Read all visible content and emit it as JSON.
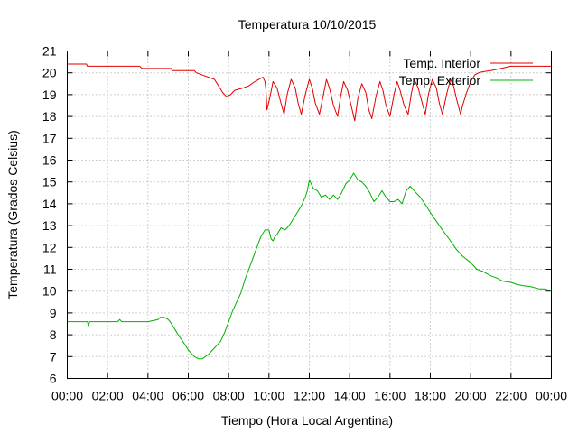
{
  "chart_data": {
    "type": "line",
    "title": "Temperatura 10/10/2015",
    "xlabel": "Tiempo (Hora Local Argentina)",
    "ylabel": "Temperatura (Grados Celsius)",
    "xlim": [
      0,
      24
    ],
    "ylim": [
      6,
      21
    ],
    "x_ticks": [
      "00:00",
      "02:00",
      "04:00",
      "06:00",
      "08:00",
      "10:00",
      "12:00",
      "14:00",
      "16:00",
      "18:00",
      "20:00",
      "22:00",
      "00:00"
    ],
    "y_ticks": [
      "6",
      "7",
      "8",
      "9",
      "10",
      "11",
      "12",
      "13",
      "14",
      "15",
      "16",
      "17",
      "18",
      "19",
      "20",
      "21"
    ],
    "grid": true,
    "legend_position": "top-right",
    "series": [
      {
        "name": "Temp. Interior",
        "color": "#e00000",
        "x": [
          0,
          0.95,
          1.0,
          3.6,
          3.7,
          5.15,
          5.2,
          6.3,
          6.4,
          7.3,
          7.5,
          7.7,
          7.9,
          8.1,
          8.3,
          8.7,
          9.0,
          9.3,
          9.5,
          9.7,
          9.8,
          9.85,
          9.9,
          10.05,
          10.2,
          10.4,
          10.6,
          10.75,
          10.9,
          11.1,
          11.3,
          11.45,
          11.6,
          11.8,
          12.0,
          12.15,
          12.3,
          12.5,
          12.7,
          12.85,
          13.0,
          13.2,
          13.4,
          13.55,
          13.7,
          13.9,
          14.1,
          14.25,
          14.4,
          14.6,
          14.8,
          14.95,
          15.1,
          15.3,
          15.5,
          15.65,
          15.8,
          16.0,
          16.2,
          16.35,
          16.5,
          16.7,
          16.9,
          17.05,
          17.2,
          17.4,
          17.6,
          17.75,
          17.9,
          18.1,
          18.3,
          18.45,
          18.6,
          18.8,
          19.0,
          19.15,
          19.3,
          19.5,
          19.6,
          19.8,
          20.0,
          20.2,
          20.4,
          20.6,
          21.0,
          21.5,
          22.0,
          22.5,
          23.0,
          24.0
        ],
        "values": [
          20.4,
          20.4,
          20.3,
          20.3,
          20.2,
          20.2,
          20.1,
          20.1,
          20.0,
          19.7,
          19.4,
          19.1,
          18.9,
          19.0,
          19.2,
          19.3,
          19.4,
          19.6,
          19.7,
          19.8,
          19.6,
          19.2,
          18.3,
          18.9,
          19.6,
          19.3,
          18.6,
          18.1,
          19.0,
          19.7,
          19.3,
          18.6,
          18.1,
          19.0,
          19.7,
          19.3,
          18.6,
          18.1,
          19.0,
          19.7,
          19.3,
          18.5,
          18.0,
          18.9,
          19.6,
          19.2,
          18.4,
          17.8,
          18.8,
          19.5,
          19.1,
          18.3,
          17.9,
          18.9,
          19.6,
          19.2,
          18.5,
          18.0,
          19.0,
          19.6,
          19.2,
          18.5,
          18.1,
          19.0,
          19.7,
          19.3,
          18.6,
          18.1,
          19.0,
          19.7,
          19.3,
          18.6,
          18.1,
          19.0,
          19.7,
          19.4,
          18.8,
          18.1,
          18.5,
          19.1,
          19.6,
          19.9,
          20.0,
          20.05,
          20.1,
          20.2,
          20.3,
          20.3,
          20.3,
          20.3
        ]
      },
      {
        "name": "Temp. Exterior",
        "color": "#00b000",
        "x": [
          0,
          1.0,
          1.05,
          1.1,
          1.15,
          2.5,
          2.6,
          2.7,
          3.0,
          4.0,
          4.5,
          4.6,
          4.8,
          5.0,
          5.1,
          5.3,
          5.5,
          5.8,
          6.0,
          6.3,
          6.5,
          6.7,
          7.0,
          7.2,
          7.4,
          7.6,
          7.8,
          8.0,
          8.2,
          8.4,
          8.6,
          8.8,
          9.0,
          9.2,
          9.4,
          9.6,
          9.8,
          10.0,
          10.1,
          10.2,
          10.3,
          10.4,
          10.6,
          10.8,
          11.0,
          11.2,
          11.4,
          11.6,
          11.8,
          11.9,
          12.0,
          12.2,
          12.4,
          12.6,
          12.8,
          13.0,
          13.2,
          13.4,
          13.6,
          13.8,
          14.0,
          14.2,
          14.4,
          14.6,
          14.8,
          15.0,
          15.2,
          15.4,
          15.6,
          15.8,
          16.0,
          16.2,
          16.4,
          16.6,
          16.8,
          17.0,
          17.2,
          17.5,
          17.8,
          18.0,
          18.3,
          18.6,
          19.0,
          19.3,
          19.6,
          20.0,
          20.3,
          20.6,
          21.0,
          21.3,
          21.6,
          22.0,
          22.3,
          22.6,
          23.0,
          23.4,
          23.7,
          24.0
        ],
        "values": [
          8.6,
          8.6,
          8.4,
          8.6,
          8.6,
          8.6,
          8.7,
          8.6,
          8.6,
          8.6,
          8.7,
          8.8,
          8.8,
          8.7,
          8.6,
          8.3,
          8.0,
          7.6,
          7.3,
          7.0,
          6.9,
          6.9,
          7.1,
          7.3,
          7.5,
          7.7,
          8.1,
          8.6,
          9.1,
          9.5,
          9.9,
          10.5,
          11.0,
          11.5,
          12.0,
          12.5,
          12.8,
          12.8,
          12.4,
          12.3,
          12.5,
          12.6,
          12.9,
          12.8,
          13.0,
          13.3,
          13.6,
          13.9,
          14.3,
          14.6,
          15.1,
          14.7,
          14.6,
          14.3,
          14.4,
          14.2,
          14.4,
          14.2,
          14.5,
          14.9,
          15.1,
          15.4,
          15.1,
          15.0,
          14.8,
          14.5,
          14.1,
          14.3,
          14.6,
          14.3,
          14.1,
          14.1,
          14.2,
          14.0,
          14.6,
          14.8,
          14.6,
          14.3,
          13.9,
          13.6,
          13.2,
          12.8,
          12.3,
          11.9,
          11.6,
          11.3,
          11.0,
          10.9,
          10.7,
          10.6,
          10.45,
          10.4,
          10.3,
          10.25,
          10.2,
          10.1,
          10.1,
          10.0
        ]
      }
    ]
  }
}
